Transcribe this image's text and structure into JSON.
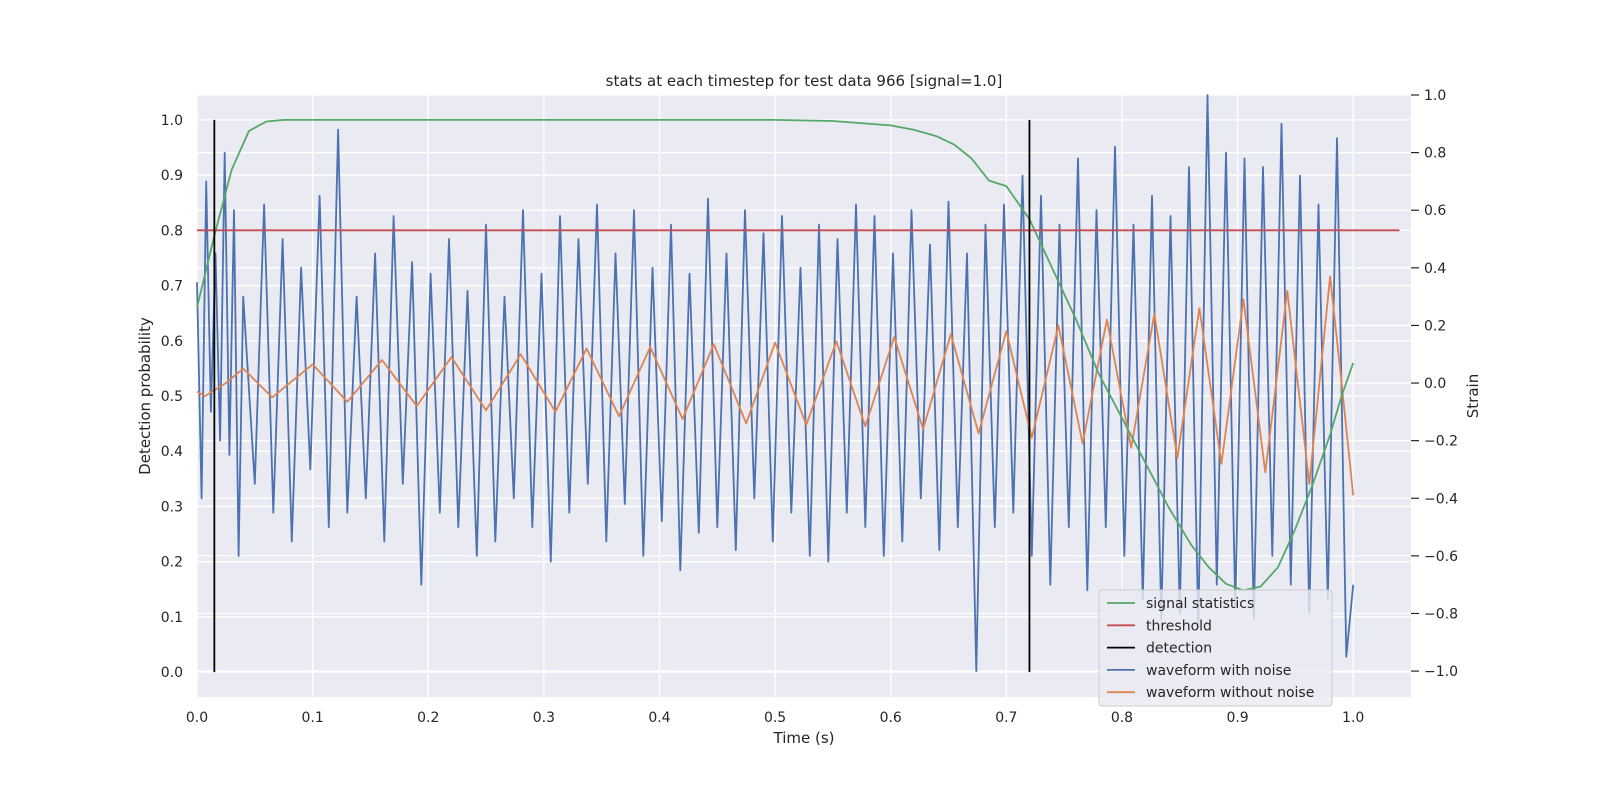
{
  "chart_data": {
    "type": "line",
    "title": "stats at each timestep for test data 966 [signal=1.0]",
    "xlabel": "Time (s)",
    "ylabel": "Detection probability",
    "y2label": "Strain",
    "xlim": [
      0.0,
      1.05
    ],
    "ylim": [
      -0.045,
      1.045
    ],
    "y2lim": [
      -1.09,
      1.0
    ],
    "xticks": [
      "0.0",
      "0.1",
      "0.2",
      "0.3",
      "0.4",
      "0.5",
      "0.6",
      "0.7",
      "0.8",
      "0.9",
      "1.0"
    ],
    "yticks": [
      "0.0",
      "0.1",
      "0.2",
      "0.3",
      "0.4",
      "0.5",
      "0.6",
      "0.7",
      "0.8",
      "0.9",
      "1.0"
    ],
    "y2ticks": [
      "−1.0",
      "−0.8",
      "−0.6",
      "−0.4",
      "−0.2",
      "0.0",
      "0.2",
      "0.4",
      "0.6",
      "0.8",
      "1.0"
    ],
    "grid": true,
    "legend_position": "lower right",
    "legend": [
      {
        "label": "signal statistics",
        "color": "#55a868"
      },
      {
        "label": "threshold",
        "color": "#c44e52"
      },
      {
        "label": "detection",
        "color": "#000000"
      },
      {
        "label": "waveform with noise",
        "color": "#4c72b0"
      },
      {
        "label": "waveform without noise",
        "color": "#dd8452"
      }
    ],
    "series": [
      {
        "name": "signal statistics",
        "axis": "left",
        "color": "#55a868",
        "x": [
          0.0,
          0.015,
          0.03,
          0.045,
          0.06,
          0.075,
          0.09,
          0.1,
          0.2,
          0.3,
          0.4,
          0.5,
          0.55,
          0.6,
          0.62,
          0.64,
          0.655,
          0.67,
          0.685,
          0.7,
          0.72,
          0.74,
          0.76,
          0.78,
          0.8,
          0.82,
          0.84,
          0.86,
          0.875,
          0.89,
          0.905,
          0.92,
          0.935,
          0.95,
          0.965,
          0.98,
          0.99,
          1.0
        ],
        "values": [
          0.66,
          0.79,
          0.91,
          0.98,
          0.997,
          1.0,
          1.0,
          1.0,
          1.0,
          1.0,
          1.0,
          1.0,
          0.998,
          0.99,
          0.982,
          0.97,
          0.955,
          0.93,
          0.89,
          0.88,
          0.82,
          0.73,
          0.64,
          0.54,
          0.46,
          0.38,
          0.3,
          0.23,
          0.19,
          0.16,
          0.148,
          0.155,
          0.19,
          0.26,
          0.34,
          0.43,
          0.5,
          0.56
        ]
      },
      {
        "name": "threshold",
        "axis": "left",
        "color": "#c44e52",
        "x": [
          0.0,
          1.04
        ],
        "values": [
          0.8,
          0.8
        ]
      },
      {
        "name": "waveform without noise",
        "axis": "right",
        "color": "#dd8452",
        "x": [
          0.0,
          0.007,
          0.025,
          0.04,
          0.065,
          0.1,
          0.13,
          0.16,
          0.19,
          0.22,
          0.25,
          0.28,
          0.31,
          0.337,
          0.365,
          0.392,
          0.42,
          0.447,
          0.475,
          0.5,
          0.527,
          0.553,
          0.578,
          0.603,
          0.628,
          0.652,
          0.676,
          0.7,
          0.722,
          0.745,
          0.766,
          0.787,
          0.808,
          0.828,
          0.848,
          0.867,
          0.886,
          0.905,
          0.924,
          0.943,
          0.962,
          0.98,
          0.99,
          1.0
        ],
        "values": [
          -0.03,
          -0.045,
          0.0,
          0.05,
          -0.05,
          0.065,
          -0.065,
          0.08,
          -0.08,
          0.09,
          -0.095,
          0.1,
          -0.1,
          0.12,
          -0.115,
          0.125,
          -0.125,
          0.135,
          -0.14,
          0.14,
          -0.145,
          0.145,
          -0.15,
          0.16,
          -0.16,
          0.17,
          -0.175,
          0.18,
          -0.19,
          0.2,
          -0.21,
          0.22,
          -0.225,
          0.24,
          -0.26,
          0.26,
          -0.28,
          0.29,
          -0.31,
          0.32,
          -0.35,
          0.37,
          0.0,
          -0.39
        ]
      },
      {
        "name": "waveform with noise",
        "axis": "right",
        "color": "#4c72b0",
        "x": [
          0.0,
          0.004,
          0.008,
          0.012,
          0.016,
          0.02,
          0.024,
          0.028,
          0.032,
          0.036,
          0.04,
          0.05,
          0.058,
          0.066,
          0.074,
          0.082,
          0.09,
          0.098,
          0.106,
          0.114,
          0.122,
          0.13,
          0.138,
          0.146,
          0.154,
          0.162,
          0.17,
          0.178,
          0.186,
          0.194,
          0.202,
          0.21,
          0.218,
          0.226,
          0.234,
          0.242,
          0.25,
          0.258,
          0.266,
          0.274,
          0.282,
          0.29,
          0.298,
          0.306,
          0.314,
          0.322,
          0.33,
          0.338,
          0.346,
          0.354,
          0.362,
          0.37,
          0.378,
          0.386,
          0.394,
          0.402,
          0.41,
          0.418,
          0.426,
          0.434,
          0.442,
          0.45,
          0.458,
          0.466,
          0.474,
          0.482,
          0.49,
          0.498,
          0.506,
          0.514,
          0.522,
          0.53,
          0.538,
          0.546,
          0.554,
          0.562,
          0.57,
          0.578,
          0.586,
          0.594,
          0.602,
          0.61,
          0.618,
          0.626,
          0.634,
          0.642,
          0.65,
          0.658,
          0.666,
          0.674,
          0.682,
          0.69,
          0.698,
          0.706,
          0.714,
          0.722,
          0.73,
          0.738,
          0.746,
          0.754,
          0.762,
          0.77,
          0.778,
          0.786,
          0.794,
          0.802,
          0.81,
          0.818,
          0.826,
          0.834,
          0.842,
          0.85,
          0.858,
          0.866,
          0.874,
          0.882,
          0.89,
          0.898,
          0.906,
          0.914,
          0.922,
          0.93,
          0.938,
          0.946,
          0.954,
          0.962,
          0.97,
          0.978,
          0.986,
          0.994,
          1.0
        ],
        "values": [
          0.35,
          -0.4,
          0.7,
          -0.1,
          0.45,
          -0.2,
          0.8,
          -0.25,
          0.6,
          -0.6,
          0.3,
          -0.35,
          0.62,
          -0.45,
          0.5,
          -0.55,
          0.4,
          -0.3,
          0.65,
          -0.5,
          0.88,
          -0.45,
          0.3,
          -0.4,
          0.45,
          -0.55,
          0.58,
          -0.35,
          0.42,
          -0.7,
          0.38,
          -0.45,
          0.5,
          -0.5,
          0.32,
          -0.6,
          0.55,
          -0.55,
          0.3,
          -0.4,
          0.6,
          -0.5,
          0.38,
          -0.62,
          0.58,
          -0.45,
          0.5,
          -0.35,
          0.62,
          -0.55,
          0.45,
          -0.42,
          0.6,
          -0.6,
          0.4,
          -0.48,
          0.55,
          -0.65,
          0.38,
          -0.52,
          0.64,
          -0.5,
          0.45,
          -0.58,
          0.6,
          -0.4,
          0.52,
          -0.55,
          0.58,
          -0.45,
          0.4,
          -0.6,
          0.55,
          -0.62,
          0.5,
          -0.45,
          0.62,
          -0.5,
          0.58,
          -0.6,
          0.45,
          -0.55,
          0.6,
          -0.4,
          0.48,
          -0.58,
          0.63,
          -0.5,
          0.45,
          -1.0,
          0.55,
          -0.5,
          0.62,
          -0.45,
          0.72,
          -0.6,
          0.65,
          -0.7,
          0.55,
          -0.5,
          0.78,
          -0.72,
          0.6,
          -0.5,
          0.82,
          -0.6,
          0.55,
          -0.75,
          0.65,
          -0.82,
          0.58,
          -0.8,
          0.75,
          -0.85,
          1.0,
          -0.7,
          0.8,
          -0.78,
          0.78,
          -0.82,
          0.75,
          -0.6,
          0.9,
          -0.7,
          0.72,
          -0.8,
          0.62,
          -0.75,
          0.85,
          -0.95,
          -0.7
        ]
      }
    ],
    "detections": [
      0.015,
      0.72
    ]
  }
}
